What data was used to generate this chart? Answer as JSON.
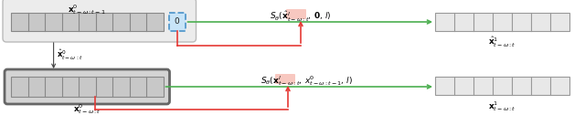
{
  "fig_width": 6.4,
  "fig_height": 1.26,
  "dpi": 100,
  "green_color": "#4caf50",
  "red_color": "#e53935",
  "highlight_color": "#f8c8c0",
  "cell_fc": "#c8c8c8",
  "cell_ec": "#888888",
  "out_fc": "#e8e8e8",
  "out_ec": "#888888",
  "bg_fc": "#e8e8e8",
  "bg_ec": "#aaaaaa",
  "blue_fc": "#c8e4f8",
  "blue_ec": "#5599cc",
  "bot_bg_fc": "#d0d0d0",
  "bot_bg_ec": "#777777",
  "label_top_bar": "$\\mathbf{x}^0_{t-\\omega:t-1}$",
  "label_hat_x": "$\\hat{\\mathbf{x}}^0_{t-\\omega:t}$",
  "label_bot_bar": "$\\mathbf{x}^0_{t-\\omega:t}$",
  "label_score_top": "$S_\\theta(\\hat{\\mathbf{x}}^l_{t-\\omega:t},\\, \\mathbf{0},\\, l)$",
  "label_score_bot": "$S_\\theta(\\mathbf{x}^l_{t-\\omega:t},\\, x^0_{t-\\omega:t-1},\\, l)$",
  "label_out_top": "$\\hat{\\mathbf{x}}^1_{t-\\omega:t}$",
  "label_out_bot": "$\\mathbf{x}^1_{t-\\omega:t}$"
}
